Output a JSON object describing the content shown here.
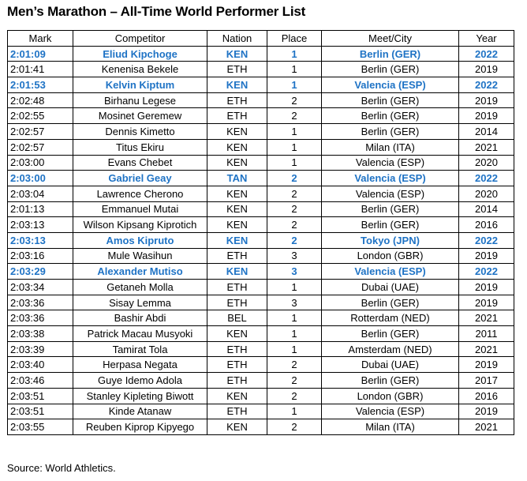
{
  "title": "Men’s Marathon – All-Time World Performer List",
  "columns": [
    "Mark",
    "Competitor",
    "Nation",
    "Place",
    "Meet/City",
    "Year"
  ],
  "rows": [
    {
      "mark": "2:01:09",
      "competitor": "Eliud Kipchoge",
      "nation": "KEN",
      "place": "1",
      "meet": "Berlin (GER)",
      "year": "2022",
      "highlight": true
    },
    {
      "mark": "2:01:41",
      "competitor": "Kenenisa Bekele",
      "nation": "ETH",
      "place": "1",
      "meet": "Berlin (GER)",
      "year": "2019",
      "highlight": false
    },
    {
      "mark": "2:01:53",
      "competitor": "Kelvin Kiptum",
      "nation": "KEN",
      "place": "1",
      "meet": "Valencia (ESP)",
      "year": "2022",
      "highlight": true
    },
    {
      "mark": "2:02:48",
      "competitor": "Birhanu Legese",
      "nation": "ETH",
      "place": "2",
      "meet": "Berlin (GER)",
      "year": "2019",
      "highlight": false
    },
    {
      "mark": "2:02:55",
      "competitor": "Mosinet Geremew",
      "nation": "ETH",
      "place": "2",
      "meet": "Berlin (GER)",
      "year": "2019",
      "highlight": false
    },
    {
      "mark": "2:02:57",
      "competitor": "Dennis Kimetto",
      "nation": "KEN",
      "place": "1",
      "meet": "Berlin (GER)",
      "year": "2014",
      "highlight": false
    },
    {
      "mark": "2:02:57",
      "competitor": "Titus Ekiru",
      "nation": "KEN",
      "place": "1",
      "meet": "Milan (ITA)",
      "year": "2021",
      "highlight": false
    },
    {
      "mark": "2:03:00",
      "competitor": "Evans Chebet",
      "nation": "KEN",
      "place": "1",
      "meet": "Valencia (ESP)",
      "year": "2020",
      "highlight": false
    },
    {
      "mark": "2:03:00",
      "competitor": "Gabriel Geay",
      "nation": "TAN",
      "place": "2",
      "meet": "Valencia (ESP)",
      "year": "2022",
      "highlight": true
    },
    {
      "mark": "2:03:04",
      "competitor": "Lawrence Cherono",
      "nation": "KEN",
      "place": "2",
      "meet": "Valencia (ESP)",
      "year": "2020",
      "highlight": false
    },
    {
      "mark": "2:01:13",
      "competitor": "Emmanuel Mutai",
      "nation": "KEN",
      "place": "2",
      "meet": "Berlin (GER)",
      "year": "2014",
      "highlight": false
    },
    {
      "mark": "2:03:13",
      "competitor": "Wilson Kipsang Kiprotich",
      "nation": "KEN",
      "place": "2",
      "meet": "Berlin (GER)",
      "year": "2016",
      "highlight": false
    },
    {
      "mark": "2:03:13",
      "competitor": "Amos Kipruto",
      "nation": "KEN",
      "place": "2",
      "meet": "Tokyo (JPN)",
      "year": "2022",
      "highlight": true
    },
    {
      "mark": "2:03:16",
      "competitor": "Mule Wasihun",
      "nation": "ETH",
      "place": "3",
      "meet": "London (GBR)",
      "year": "2019",
      "highlight": false
    },
    {
      "mark": "2:03:29",
      "competitor": "Alexander Mutiso",
      "nation": "KEN",
      "place": "3",
      "meet": "Valencia (ESP)",
      "year": "2022",
      "highlight": true
    },
    {
      "mark": "2:03:34",
      "competitor": "Getaneh Molla",
      "nation": "ETH",
      "place": "1",
      "meet": "Dubai (UAE)",
      "year": "2019",
      "highlight": false
    },
    {
      "mark": "2:03:36",
      "competitor": "Sisay Lemma",
      "nation": "ETH",
      "place": "3",
      "meet": "Berlin (GER)",
      "year": "2019",
      "highlight": false
    },
    {
      "mark": "2:03:36",
      "competitor": "Bashir Abdi",
      "nation": "BEL",
      "place": "1",
      "meet": "Rotterdam (NED)",
      "year": "2021",
      "highlight": false
    },
    {
      "mark": "2:03:38",
      "competitor": "Patrick Macau Musyoki",
      "nation": "KEN",
      "place": "1",
      "meet": "Berlin (GER)",
      "year": "2011",
      "highlight": false
    },
    {
      "mark": "2:03:39",
      "competitor": "Tamirat Tola",
      "nation": "ETH",
      "place": "1",
      "meet": "Amsterdam (NED)",
      "year": "2021",
      "highlight": false
    },
    {
      "mark": "2:03:40",
      "competitor": "Herpasa Negata",
      "nation": "ETH",
      "place": "2",
      "meet": "Dubai (UAE)",
      "year": "2019",
      "highlight": false
    },
    {
      "mark": "2:03:46",
      "competitor": "Guye Idemo Adola",
      "nation": "ETH",
      "place": "2",
      "meet": "Berlin (GER)",
      "year": "2017",
      "highlight": false
    },
    {
      "mark": "2:03:51",
      "competitor": "Stanley Kipleting Biwott",
      "nation": "KEN",
      "place": "2",
      "meet": "London (GBR)",
      "year": "2016",
      "highlight": false
    },
    {
      "mark": "2:03:51",
      "competitor": "Kinde Atanaw",
      "nation": "ETH",
      "place": "1",
      "meet": "Valencia (ESP)",
      "year": "2019",
      "highlight": false
    },
    {
      "mark": "2:03:55",
      "competitor": "Reuben Kiprop Kipyego",
      "nation": "KEN",
      "place": "2",
      "meet": "Milan (ITA)",
      "year": "2021",
      "highlight": false
    }
  ],
  "source": "Source: World Athletics.",
  "colors": {
    "highlight_text": "#1f73c5",
    "border": "#000000",
    "text": "#000000",
    "background": "#ffffff"
  }
}
